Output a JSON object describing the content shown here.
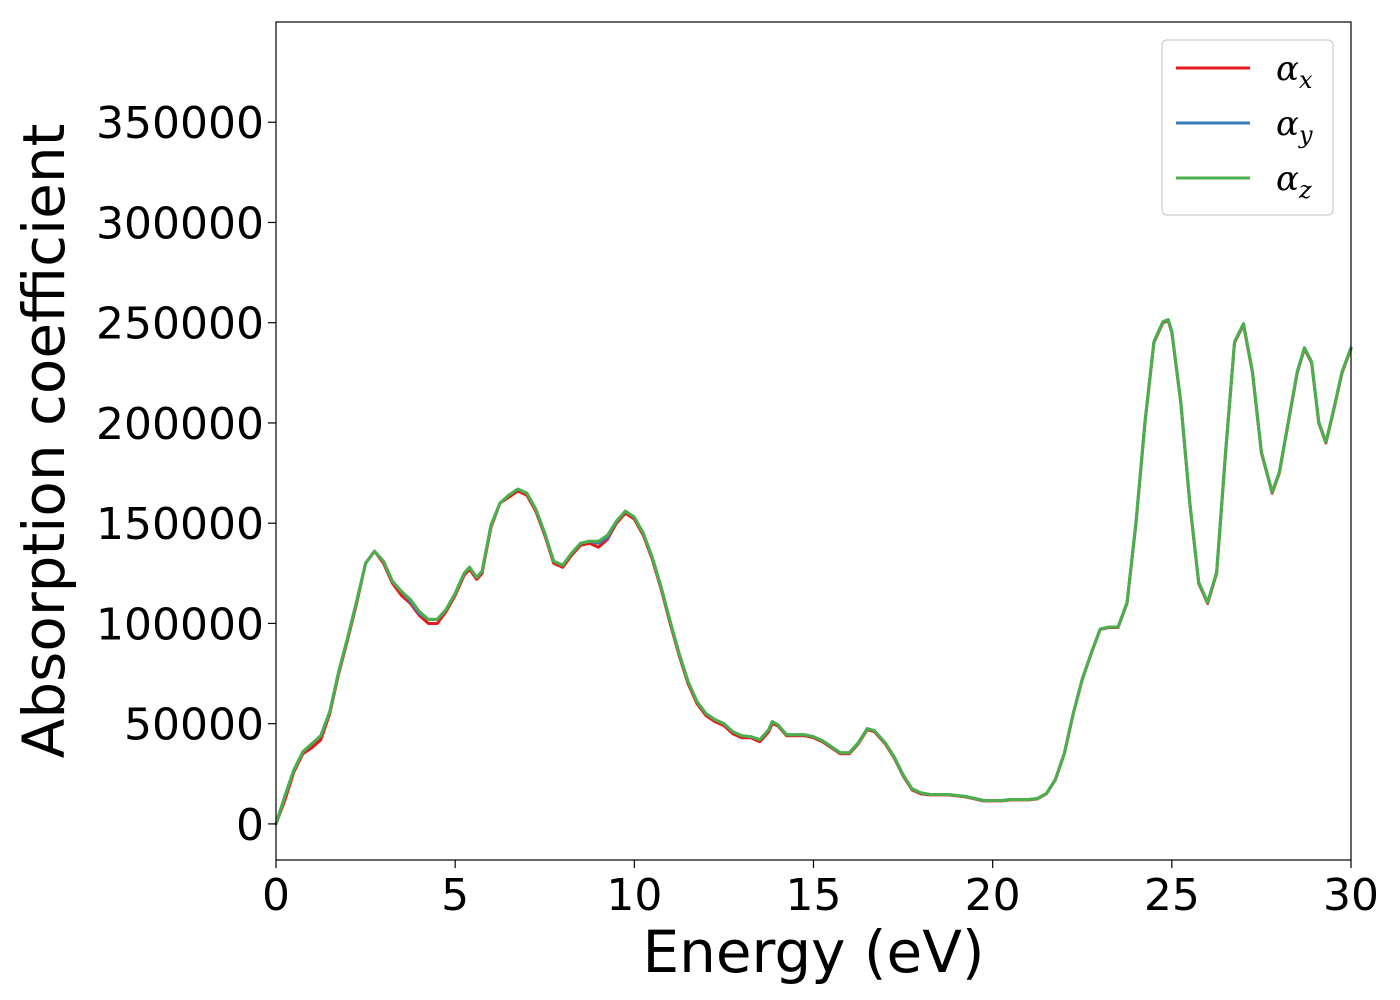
{
  "chart_data": {
    "type": "line",
    "title": "",
    "xlabel": "Energy (eV)",
    "ylabel": "Absorption coefficient",
    "xlim": [
      0,
      30
    ],
    "ylim": [
      -18000,
      400000
    ],
    "xticks": [
      0,
      5,
      10,
      15,
      20,
      25,
      30
    ],
    "yticks": [
      0,
      50000,
      100000,
      150000,
      200000,
      250000,
      300000,
      350000
    ],
    "grid": false,
    "legend_position": "top-right",
    "x": [
      0,
      0.25,
      0.5,
      0.75,
      1.0,
      1.25,
      1.5,
      1.75,
      2.0,
      2.25,
      2.5,
      2.75,
      3.0,
      3.25,
      3.5,
      3.75,
      4.0,
      4.25,
      4.5,
      4.75,
      5.0,
      5.25,
      5.4,
      5.6,
      5.75,
      6.0,
      6.25,
      6.5,
      6.75,
      7.0,
      7.25,
      7.5,
      7.75,
      8.0,
      8.25,
      8.5,
      8.75,
      9.0,
      9.25,
      9.5,
      9.75,
      10.0,
      10.25,
      10.5,
      10.75,
      11.0,
      11.25,
      11.5,
      11.75,
      12.0,
      12.25,
      12.5,
      12.75,
      13.0,
      13.25,
      13.5,
      13.75,
      13.85,
      14.0,
      14.25,
      14.5,
      14.75,
      15.0,
      15.25,
      15.5,
      15.75,
      16.0,
      16.25,
      16.5,
      16.7,
      17.0,
      17.25,
      17.5,
      17.75,
      18.0,
      18.25,
      18.5,
      18.75,
      19.0,
      19.25,
      19.5,
      19.75,
      20.0,
      20.25,
      20.5,
      20.75,
      21.0,
      21.25,
      21.5,
      21.75,
      22.0,
      22.25,
      22.5,
      22.75,
      23.0,
      23.25,
      23.5,
      23.75,
      24.0,
      24.25,
      24.5,
      24.75,
      24.9,
      25.0,
      25.25,
      25.5,
      25.75,
      26.0,
      26.25,
      26.5,
      26.75,
      27.0,
      27.25,
      27.5,
      27.8,
      28.0,
      28.25,
      28.5,
      28.7,
      28.9,
      29.1,
      29.3,
      29.5,
      29.75,
      30.0
    ],
    "series": [
      {
        "name": "α_x",
        "color": "#e41a1c",
        "values": [
          0,
          12000,
          26000,
          35000,
          38000,
          42000,
          55000,
          75000,
          92000,
          110000,
          130000,
          136000,
          130000,
          120000,
          114000,
          110000,
          104000,
          100000,
          100000,
          106000,
          114000,
          124000,
          127000,
          122000,
          125000,
          148000,
          160000,
          163000,
          166000,
          164000,
          156000,
          144000,
          130000,
          128000,
          134000,
          139000,
          140000,
          138000,
          142000,
          150000,
          155000,
          152000,
          144000,
          132000,
          117000,
          100000,
          84000,
          70000,
          60000,
          54000,
          51000,
          49000,
          45000,
          43000,
          43000,
          41000,
          46000,
          50000,
          49000,
          44000,
          44000,
          44000,
          43000,
          41000,
          38000,
          35000,
          35000,
          40000,
          47000,
          46000,
          40000,
          33000,
          24000,
          17000,
          15000,
          14500,
          14500,
          14500,
          14000,
          13500,
          12500,
          11500,
          11500,
          11500,
          12000,
          12000,
          12000,
          12500,
          15000,
          22000,
          35000,
          55000,
          72000,
          85000,
          97000,
          98000,
          98000,
          110000,
          150000,
          200000,
          240000,
          250000,
          251000,
          245000,
          210000,
          160000,
          120000,
          110000,
          125000,
          185000,
          240000,
          249000,
          225000,
          185000,
          165000,
          175000,
          200000,
          225000,
          237000,
          230000,
          200000,
          190000,
          205000,
          225000,
          237000
        ]
      },
      {
        "name": "α_y",
        "color": "#377eb8",
        "values": [
          0,
          14000,
          27000,
          36000,
          40000,
          44000,
          56000,
          76000,
          93000,
          111000,
          130000,
          136000,
          131000,
          121000,
          116000,
          111000,
          105000,
          102000,
          102000,
          107000,
          115000,
          125000,
          128000,
          123000,
          126000,
          149000,
          160000,
          164000,
          167000,
          165000,
          157000,
          145000,
          131000,
          129000,
          135000,
          140000,
          141000,
          140000,
          143000,
          151000,
          156000,
          153000,
          145000,
          133000,
          118000,
          101000,
          85000,
          71000,
          61000,
          55000,
          52000,
          50000,
          46000,
          44000,
          43500,
          42000,
          47000,
          51000,
          49500,
          44500,
          44500,
          44500,
          43500,
          41500,
          38500,
          35500,
          35500,
          40500,
          47500,
          46500,
          40500,
          33500,
          24500,
          17500,
          15500,
          14700,
          14700,
          14700,
          14200,
          13700,
          12700,
          11700,
          11700,
          11700,
          12200,
          12200,
          12200,
          12700,
          15200,
          22200,
          35200,
          55200,
          72200,
          85200,
          97200,
          98200,
          98200,
          110500,
          150500,
          200500,
          240500,
          250500,
          251500,
          245500,
          210500,
          160500,
          120500,
          110500,
          125500,
          185500,
          240500,
          249500,
          225500,
          185500,
          165500,
          175500,
          200500,
          225500,
          237500,
          230500,
          200500,
          190500,
          205500,
          225500,
          237500
        ]
      },
      {
        "name": "α_z",
        "color": "#4daf4a",
        "values": [
          0,
          14000,
          27000,
          36000,
          40000,
          44000,
          56000,
          76000,
          93000,
          111000,
          130000,
          136000,
          131000,
          121000,
          116000,
          112000,
          106000,
          102000,
          102000,
          107000,
          115000,
          125000,
          128000,
          123000,
          126000,
          149000,
          160000,
          164000,
          167000,
          165000,
          157000,
          145000,
          131000,
          129000,
          135000,
          140000,
          141000,
          141000,
          144000,
          151000,
          156000,
          153000,
          145000,
          133000,
          118000,
          101000,
          85000,
          71000,
          61000,
          55000,
          52000,
          50000,
          46000,
          44000,
          43500,
          42000,
          47000,
          51000,
          49500,
          44500,
          44500,
          44500,
          43500,
          41500,
          38500,
          35500,
          35500,
          40500,
          47500,
          46500,
          40500,
          33500,
          24500,
          17500,
          15500,
          14700,
          14700,
          14700,
          14200,
          13700,
          12700,
          11700,
          11700,
          11700,
          12200,
          12200,
          12200,
          12700,
          15200,
          22200,
          35200,
          55200,
          72200,
          85200,
          97200,
          98200,
          98200,
          110500,
          150500,
          200500,
          240500,
          250500,
          251500,
          245500,
          210500,
          160500,
          120500,
          110500,
          125500,
          185500,
          240500,
          249500,
          225500,
          185500,
          165500,
          175500,
          200500,
          225500,
          237500,
          230500,
          200500,
          190500,
          205500,
          225500,
          237500
        ]
      }
    ],
    "legend": [
      {
        "symbol": "α",
        "subscript": "x",
        "color": "#e41a1c"
      },
      {
        "symbol": "α",
        "subscript": "y",
        "color": "#377eb8"
      },
      {
        "symbol": "α",
        "subscript": "z",
        "color": "#4daf4a"
      }
    ]
  }
}
